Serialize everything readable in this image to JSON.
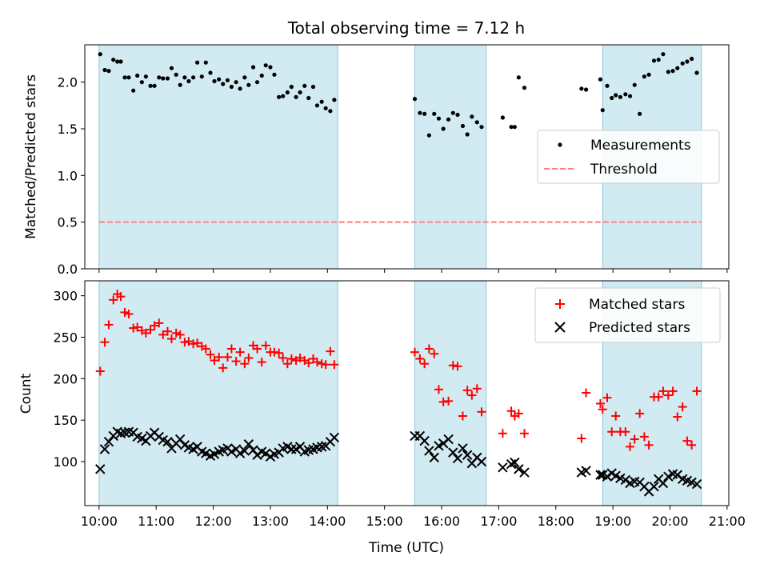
{
  "chart_data": [
    {
      "type": "scatter",
      "title": "Total observing time = 7.12 h",
      "xlabel": "",
      "ylabel": "Matched/Predicted stars",
      "ylim": [
        0,
        2.4
      ],
      "yticks": [
        0.0,
        0.5,
        1.0,
        1.5,
        2.0
      ],
      "ytick_labels": [
        "0.0",
        "0.5",
        "1.0",
        "1.5",
        "2.0"
      ],
      "xlim_hours": [
        9.75,
        21.03
      ],
      "shaded_intervals_hours": [
        [
          10.0,
          14.18
        ],
        [
          15.53,
          16.78
        ],
        [
          18.82,
          20.55
        ]
      ],
      "shade_color": "#add8e6",
      "legend_placement": "center-right",
      "series": [
        {
          "name": "Measurements",
          "kind": "points",
          "color": "#000000",
          "x": [
            10.02,
            10.1,
            10.17,
            10.25,
            10.32,
            10.38,
            10.45,
            10.52,
            10.6,
            10.67,
            10.75,
            10.82,
            10.9,
            10.97,
            11.05,
            11.12,
            11.2,
            11.27,
            11.35,
            11.42,
            11.5,
            11.57,
            11.65,
            11.72,
            11.8,
            11.87,
            11.95,
            12.02,
            12.1,
            12.17,
            12.25,
            12.32,
            12.4,
            12.47,
            12.55,
            12.62,
            12.7,
            12.77,
            12.85,
            12.92,
            13.0,
            13.07,
            13.15,
            13.22,
            13.3,
            13.37,
            13.45,
            13.52,
            13.6,
            13.67,
            13.75,
            13.82,
            13.9,
            13.97,
            14.05,
            14.12,
            15.53,
            15.62,
            15.7,
            15.78,
            15.87,
            15.95,
            16.03,
            16.12,
            16.2,
            16.28,
            16.37,
            16.45,
            16.53,
            16.62,
            16.7,
            17.07,
            17.22,
            17.28,
            17.35,
            17.45,
            18.45,
            18.53,
            18.78,
            18.82,
            18.9,
            18.98,
            19.05,
            19.13,
            19.22,
            19.3,
            19.38,
            19.47,
            19.55,
            19.63,
            19.72,
            19.8,
            19.88,
            19.97,
            20.05,
            20.13,
            20.22,
            20.3,
            20.38,
            20.47
          ],
          "y": [
            2.3,
            2.13,
            2.12,
            2.24,
            2.22,
            2.22,
            2.05,
            2.05,
            1.91,
            2.07,
            2.0,
            2.06,
            1.96,
            1.96,
            2.05,
            2.04,
            2.04,
            2.15,
            2.08,
            1.97,
            2.05,
            2.01,
            2.05,
            2.21,
            2.06,
            2.21,
            2.1,
            2.01,
            2.03,
            1.98,
            2.02,
            1.95,
            2.0,
            1.93,
            2.05,
            1.97,
            2.16,
            2.0,
            2.07,
            2.18,
            2.16,
            2.08,
            1.84,
            1.85,
            1.89,
            1.95,
            1.84,
            1.89,
            1.96,
            1.83,
            1.95,
            1.75,
            1.79,
            1.72,
            1.69,
            1.81,
            1.82,
            1.67,
            1.66,
            1.43,
            1.66,
            1.61,
            1.5,
            1.6,
            1.67,
            1.65,
            1.53,
            1.44,
            1.63,
            1.57,
            1.52,
            1.62,
            1.52,
            1.52,
            2.05,
            1.94,
            1.93,
            1.92,
            2.03,
            1.7,
            1.96,
            1.83,
            1.86,
            1.84,
            1.87,
            1.85,
            1.97,
            1.66,
            2.06,
            2.08,
            2.23,
            2.24,
            2.3,
            2.11,
            2.12,
            2.15,
            2.2,
            2.22,
            2.25,
            2.1
          ]
        },
        {
          "name": "Threshold",
          "kind": "dashed-line",
          "color": "#ff7f7f",
          "x": [
            10.0,
            20.55
          ],
          "y": [
            0.5,
            0.5
          ]
        }
      ]
    },
    {
      "type": "scatter",
      "title": "",
      "xlabel": "Time (UTC)",
      "ylabel": "Count",
      "ylim": [
        47,
        318
      ],
      "yticks": [
        100,
        150,
        200,
        250,
        300
      ],
      "ytick_labels": [
        "100",
        "150",
        "200",
        "250",
        "300"
      ],
      "xlim_hours": [
        9.75,
        21.03
      ],
      "xticks_hours": [
        10,
        11,
        12,
        13,
        14,
        15,
        16,
        17,
        18,
        19,
        20,
        21
      ],
      "xtick_labels": [
        "10:00",
        "11:00",
        "12:00",
        "13:00",
        "14:00",
        "15:00",
        "16:00",
        "17:00",
        "18:00",
        "19:00",
        "20:00",
        "21:00"
      ],
      "shaded_intervals_hours": [
        [
          10.0,
          14.18
        ],
        [
          15.53,
          16.78
        ],
        [
          18.82,
          20.55
        ]
      ],
      "shade_color": "#add8e6",
      "legend_placement": "top-right",
      "series": [
        {
          "name": "Matched stars",
          "kind": "plus",
          "color": "#ff0000",
          "x": [
            10.02,
            10.1,
            10.17,
            10.25,
            10.32,
            10.38,
            10.45,
            10.52,
            10.6,
            10.67,
            10.75,
            10.82,
            10.9,
            10.97,
            11.05,
            11.12,
            11.2,
            11.27,
            11.35,
            11.42,
            11.5,
            11.57,
            11.65,
            11.72,
            11.8,
            11.87,
            11.95,
            12.02,
            12.1,
            12.17,
            12.25,
            12.32,
            12.4,
            12.47,
            12.55,
            12.62,
            12.7,
            12.77,
            12.85,
            12.92,
            13.0,
            13.07,
            13.15,
            13.22,
            13.3,
            13.37,
            13.45,
            13.52,
            13.6,
            13.67,
            13.75,
            13.82,
            13.9,
            13.97,
            14.05,
            14.12,
            15.53,
            15.62,
            15.7,
            15.78,
            15.87,
            15.95,
            16.03,
            16.12,
            16.2,
            16.28,
            16.37,
            16.45,
            16.53,
            16.62,
            16.7,
            17.07,
            17.22,
            17.28,
            17.35,
            17.45,
            18.45,
            18.53,
            18.78,
            18.82,
            18.9,
            18.98,
            19.05,
            19.13,
            19.22,
            19.3,
            19.38,
            19.47,
            19.55,
            19.63,
            19.72,
            19.8,
            19.88,
            19.97,
            20.05,
            20.13,
            20.22,
            20.3,
            20.38,
            20.47
          ],
          "y": [
            209,
            244,
            265,
            295,
            302,
            299,
            280,
            278,
            261,
            262,
            258,
            255,
            259,
            264,
            267,
            253,
            257,
            248,
            255,
            253,
            244,
            245,
            242,
            243,
            239,
            236,
            229,
            222,
            226,
            213,
            226,
            236,
            221,
            232,
            218,
            225,
            240,
            236,
            220,
            240,
            232,
            232,
            231,
            225,
            218,
            224,
            222,
            225,
            222,
            219,
            224,
            220,
            218,
            217,
            233,
            217,
            232,
            224,
            218,
            236,
            230,
            187,
            172,
            173,
            216,
            215,
            155,
            186,
            180,
            188,
            160,
            134,
            161,
            155,
            158,
            134,
            128,
            183,
            170,
            163,
            177,
            136,
            155,
            136,
            136,
            118,
            127,
            158,
            130,
            120,
            178,
            178,
            185,
            180,
            185,
            154,
            166,
            125,
            120,
            185
          ]
        },
        {
          "name": "Predicted stars",
          "kind": "cross",
          "color": "#000000",
          "x": [
            10.02,
            10.1,
            10.17,
            10.25,
            10.32,
            10.38,
            10.45,
            10.52,
            10.6,
            10.67,
            10.75,
            10.82,
            10.9,
            10.97,
            11.05,
            11.12,
            11.2,
            11.27,
            11.35,
            11.42,
            11.5,
            11.57,
            11.65,
            11.72,
            11.8,
            11.87,
            11.95,
            12.02,
            12.1,
            12.17,
            12.25,
            12.32,
            12.4,
            12.47,
            12.55,
            12.62,
            12.7,
            12.77,
            12.85,
            12.92,
            13.0,
            13.07,
            13.15,
            13.22,
            13.3,
            13.37,
            13.45,
            13.52,
            13.6,
            13.67,
            13.75,
            13.82,
            13.9,
            13.97,
            14.05,
            14.12,
            15.53,
            15.62,
            15.7,
            15.78,
            15.87,
            15.95,
            16.03,
            16.12,
            16.2,
            16.28,
            16.37,
            16.45,
            16.53,
            16.62,
            16.7,
            17.07,
            17.22,
            17.28,
            17.35,
            17.45,
            18.45,
            18.53,
            18.78,
            18.82,
            18.9,
            18.98,
            19.05,
            19.13,
            19.22,
            19.3,
            19.38,
            19.47,
            19.55,
            19.63,
            19.72,
            19.8,
            19.88,
            19.97,
            20.05,
            20.13,
            20.22,
            20.3,
            20.38,
            20.47
          ],
          "y": [
            91,
            115,
            124,
            131,
            136,
            134,
            135,
            136,
            135,
            130,
            128,
            125,
            131,
            135,
            130,
            126,
            124,
            116,
            122,
            127,
            120,
            117,
            115,
            118,
            112,
            110,
            107,
            109,
            112,
            114,
            116,
            112,
            115,
            110,
            113,
            121,
            114,
            108,
            112,
            110,
            106,
            109,
            111,
            116,
            118,
            115,
            115,
            118,
            112,
            114,
            115,
            117,
            118,
            119,
            124,
            129,
            131,
            131,
            125,
            113,
            105,
            119,
            122,
            127,
            111,
            104,
            116,
            108,
            98,
            105,
            100,
            93,
            97,
            99,
            91,
            87,
            87,
            89,
            84,
            84,
            82,
            86,
            83,
            80,
            78,
            74,
            76,
            75,
            70,
            64,
            70,
            79,
            74,
            82,
            85,
            84,
            79,
            77,
            75,
            73
          ]
        }
      ]
    }
  ]
}
